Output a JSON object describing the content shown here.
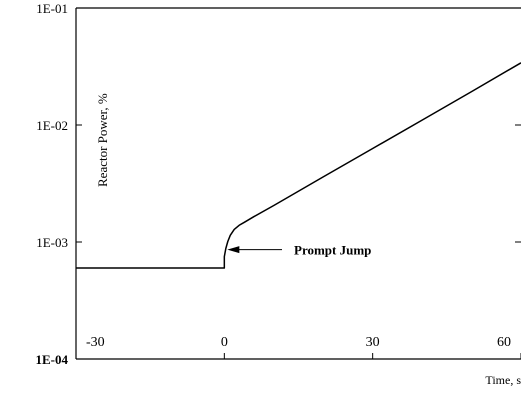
{
  "chart_data": {
    "type": "line",
    "title": "",
    "xlabel": "Time, s",
    "ylabel": "Reactor Power, %",
    "y_scale": "log",
    "xlim": [
      -30,
      60
    ],
    "ylim": [
      0.0001,
      0.1
    ],
    "x_ticks": [
      {
        "value": -30,
        "label": "-30"
      },
      {
        "value": 0,
        "label": "0"
      },
      {
        "value": 30,
        "label": "30"
      },
      {
        "value": 60,
        "label": "60"
      }
    ],
    "y_ticks": [
      {
        "value": 0.1,
        "label": "1E-01",
        "bold": false
      },
      {
        "value": 0.01,
        "label": "1E-02",
        "bold": false
      },
      {
        "value": 0.001,
        "label": "1E-03",
        "bold": false
      },
      {
        "value": 0.0001,
        "label": "1E-04",
        "bold": true
      }
    ],
    "grid": false,
    "series": [
      {
        "color": "#000000",
        "x": [
          -30,
          0,
          0,
          0.3,
          0.7,
          1.2,
          2.0,
          3.0,
          4.0,
          6.0,
          10.0,
          20.0,
          30.0,
          40.0,
          50.0,
          60.0
        ],
        "y": [
          0.0006,
          0.0006,
          0.00075,
          0.00088,
          0.00101,
          0.00114,
          0.00128,
          0.00139,
          0.00147,
          0.00165,
          0.00205,
          0.0036,
          0.0063,
          0.011,
          0.0193,
          0.034
        ]
      }
    ],
    "annotations": [
      {
        "text": "Prompt Jump",
        "arrow": true,
        "points_to": {
          "x": 0,
          "y": 0.00068
        }
      }
    ]
  }
}
